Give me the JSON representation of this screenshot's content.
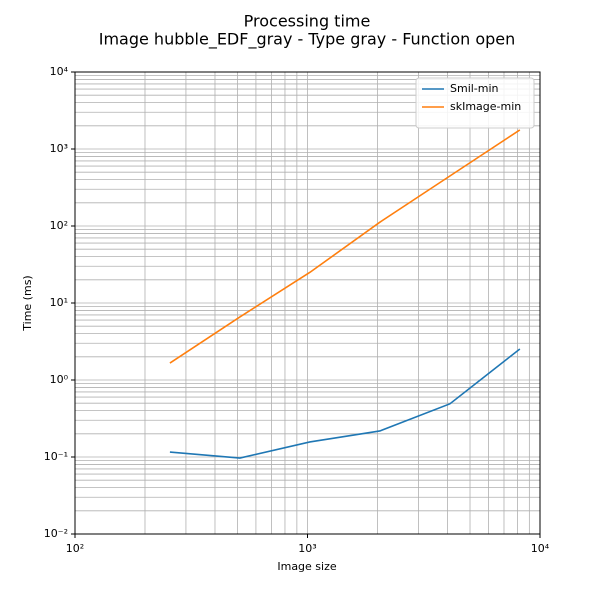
{
  "chart_data": {
    "type": "line",
    "title": "Processing time",
    "subtitle": "Image hubble_EDF_gray - Type gray - Function open",
    "x_label": "Image size",
    "y_label": "Time (ms)",
    "x": [
      256,
      512,
      1024,
      2048,
      4096,
      8192
    ],
    "series": [
      {
        "name": "Smil-min",
        "color": "#1f77b4",
        "values": [
          0.116,
          0.097,
          0.157,
          0.218,
          0.49,
          2.53
        ]
      },
      {
        "name": "skImage-min",
        "color": "#ff7f0e",
        "values": [
          1.66,
          6.6,
          25,
          112,
          446,
          1770
        ]
      }
    ],
    "xlim": [
      100,
      10000
    ],
    "xticks": [
      {
        "value": 100,
        "label": "10²"
      },
      {
        "value": 1000,
        "label": "10³"
      },
      {
        "value": 10000,
        "label": "10⁴"
      }
    ],
    "ylim": [
      0.01,
      10000
    ],
    "yticks": [
      {
        "value": 0.01,
        "label": "10⁻²"
      },
      {
        "value": 0.1,
        "label": "10⁻¹"
      },
      {
        "value": 1,
        "label": "10⁰"
      },
      {
        "value": 10,
        "label": "10¹"
      },
      {
        "value": 100,
        "label": "10²"
      },
      {
        "value": 1000,
        "label": "10³"
      },
      {
        "value": 10000,
        "label": "10⁴"
      }
    ],
    "log_x": true,
    "log_y": true,
    "grid": true,
    "minor_grid": true,
    "legend": "upper right"
  }
}
